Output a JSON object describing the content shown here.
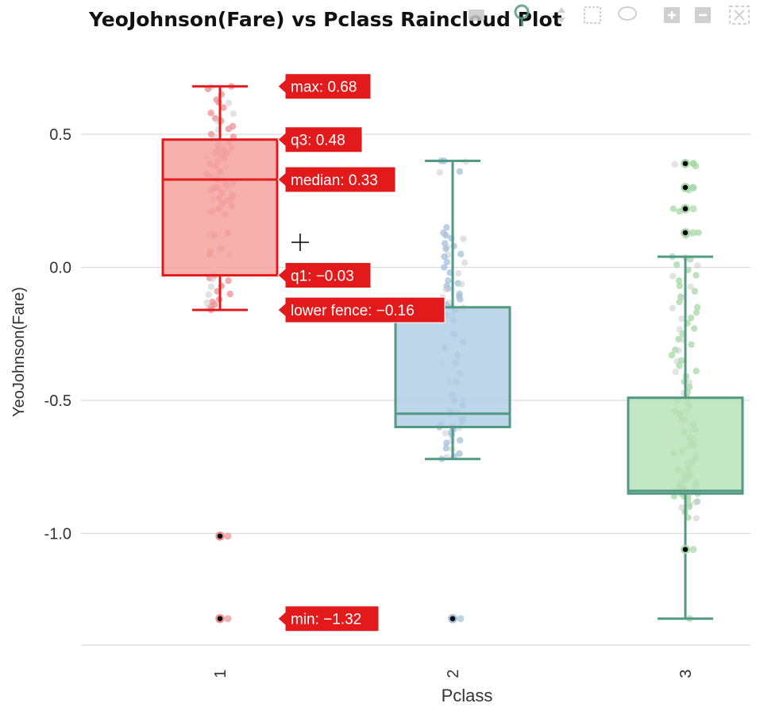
{
  "title": {
    "text": "YeoJohnson(Fare) vs Pclass Raincloud Plot"
  },
  "modebar": {
    "icons": [
      "camera-icon",
      "zoom-icon",
      "pan-icon",
      "box-select-icon",
      "lasso-icon",
      "zoom-in-icon",
      "zoom-out-icon",
      "autoscale-icon"
    ],
    "icon_color": "#c8c8c8"
  },
  "chart_data": {
    "type": "box",
    "title": "YeoJohnson(Fare) vs Pclass Raincloud Plot",
    "xlabel": "Pclass",
    "ylabel": "YeoJohnson(Fare)",
    "categories": [
      "1",
      "2",
      "3"
    ],
    "ylim": [
      -1.42,
      0.74
    ],
    "yticks": [
      0.5,
      0.0,
      -0.5,
      -1.0
    ],
    "ytick_labels": [
      "0.5",
      "0.0",
      "-0.5",
      "-1.0"
    ],
    "grid": true,
    "series": [
      {
        "category": "1",
        "color": "#e31a1c",
        "fill": "#f4a09e",
        "min": -0.16,
        "q1": -0.03,
        "median": 0.33,
        "q3": 0.48,
        "max": 0.68,
        "outliers": [
          -1.01,
          -1.32
        ],
        "points_color": "#ee8f90",
        "points": [
          0.68,
          0.67,
          0.65,
          0.63,
          0.62,
          0.6,
          0.58,
          0.56,
          0.55,
          0.53,
          0.52,
          0.5,
          0.49,
          0.47,
          0.46,
          0.45,
          0.44,
          0.44,
          0.43,
          0.43,
          0.42,
          0.41,
          0.4,
          0.39,
          0.38,
          0.36,
          0.35,
          0.34,
          0.33,
          0.32,
          0.31,
          0.3,
          0.3,
          0.29,
          0.28,
          0.27,
          0.26,
          0.26,
          0.25,
          0.24,
          0.23,
          0.22,
          0.21,
          0.2,
          0.13,
          0.12,
          0.07,
          0.06,
          0.05,
          -0.03,
          -0.04,
          -0.05,
          -0.07,
          -0.09,
          -0.1,
          -0.12,
          -0.13,
          -0.14,
          -0.15,
          -0.16
        ]
      },
      {
        "category": "2",
        "color": "#529a84",
        "fill": "#b0cde4",
        "min": -0.72,
        "q1": -0.6,
        "median": -0.55,
        "q3": -0.15,
        "max": 0.4,
        "outliers": [
          -1.32
        ],
        "points_color": "#a3c1dc",
        "points": [
          0.4,
          0.4,
          0.36,
          0.15,
          0.13,
          0.12,
          0.11,
          0.09,
          0.08,
          0.07,
          0.05,
          0.04,
          0.02,
          0.0,
          -0.02,
          -0.05,
          -0.06,
          -0.07,
          -0.08,
          -0.1,
          -0.11,
          -0.12,
          -0.13,
          -0.14,
          -0.15,
          -0.16,
          -0.18,
          -0.2,
          -0.25,
          -0.28,
          -0.3,
          -0.33,
          -0.36,
          -0.4,
          -0.43,
          -0.48,
          -0.5,
          -0.52,
          -0.54,
          -0.55,
          -0.57,
          -0.58,
          -0.59,
          -0.6,
          -0.6,
          -0.61,
          -0.62,
          -0.63,
          -0.65,
          -0.66,
          -0.68,
          -0.7,
          -0.71,
          -0.72
        ]
      },
      {
        "category": "3",
        "color": "#529a84",
        "fill": "#b6e0b6",
        "min": -1.32,
        "q1": -0.85,
        "median": -0.84,
        "q3": -0.49,
        "max": 0.04,
        "outliers": [
          0.39,
          0.3,
          0.22,
          0.13,
          -1.06
        ],
        "points_color": "#a4d8a4",
        "points": [
          0.39,
          0.38,
          0.3,
          0.29,
          0.22,
          0.21,
          0.13,
          0.12,
          0.04,
          0.03,
          0.01,
          -0.01,
          -0.03,
          -0.05,
          -0.07,
          -0.09,
          -0.11,
          -0.13,
          -0.15,
          -0.17,
          -0.19,
          -0.21,
          -0.23,
          -0.25,
          -0.27,
          -0.29,
          -0.31,
          -0.33,
          -0.35,
          -0.37,
          -0.39,
          -0.41,
          -0.43,
          -0.45,
          -0.47,
          -0.49,
          -0.5,
          -0.52,
          -0.54,
          -0.55,
          -0.57,
          -0.59,
          -0.61,
          -0.62,
          -0.64,
          -0.66,
          -0.67,
          -0.69,
          -0.7,
          -0.72,
          -0.73,
          -0.75,
          -0.76,
          -0.77,
          -0.78,
          -0.79,
          -0.8,
          -0.81,
          -0.82,
          -0.83,
          -0.83,
          -0.84,
          -0.84,
          -0.85,
          -0.85,
          -0.86,
          -0.86,
          -0.87,
          -0.88,
          -0.89,
          -0.9,
          -0.92,
          -0.94,
          -1.32
        ]
      }
    ]
  },
  "hover_labels": {
    "max": "max: 0.68",
    "q3": "q3: 0.48",
    "median": "median: 0.33",
    "q1": "q1: −0.03",
    "lower_fence": "lower fence: −0.16",
    "min": "min: −1.32",
    "color": "#e31a1c"
  }
}
